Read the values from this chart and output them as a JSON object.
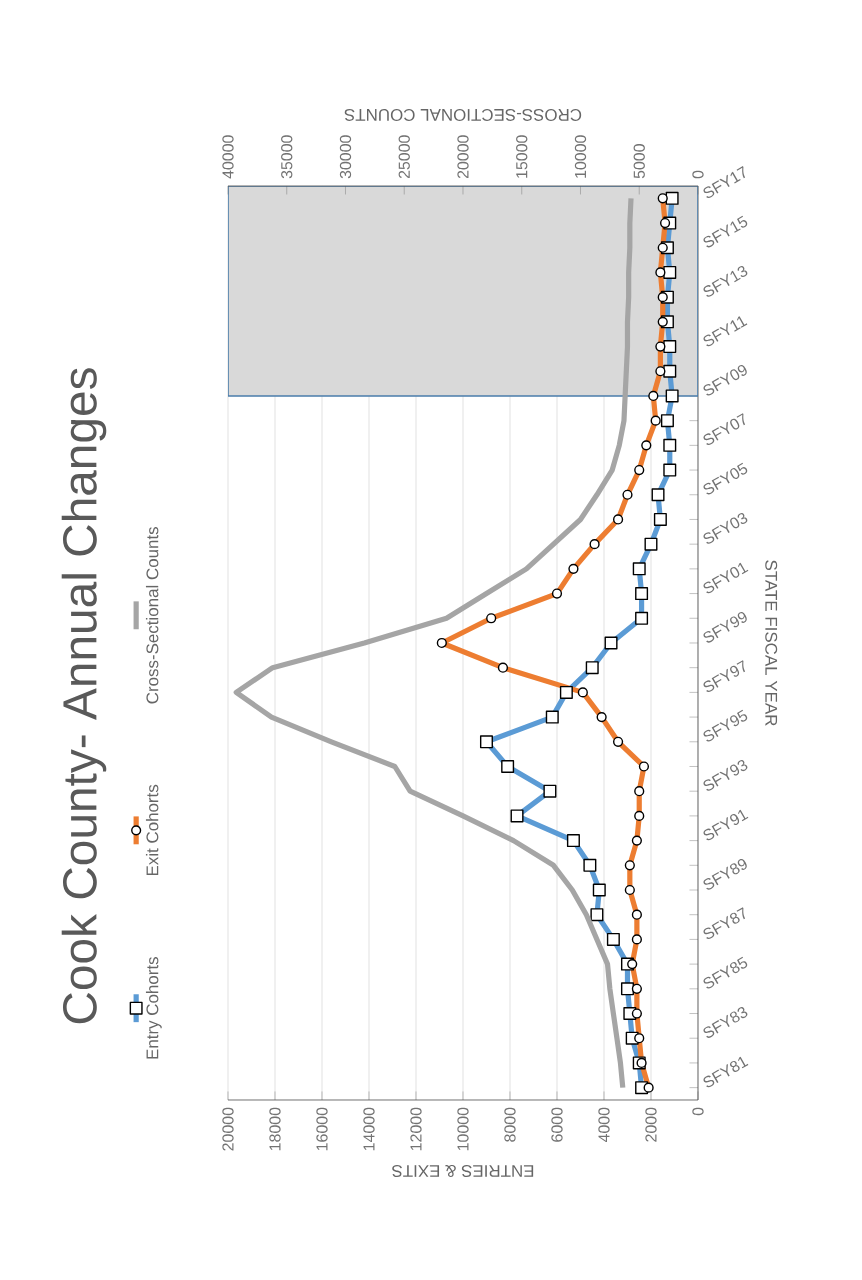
{
  "chart_data": {
    "type": "line",
    "orientation": "horizontal",
    "title": "Cook County- Annual Changes",
    "ylabel": "STATE FISCAL YEAR",
    "xlabel": "ENTRIES & EXITS",
    "x2label": "CROSS-SECTIONAL COUNTS",
    "categories": [
      "SFY17",
      null,
      "SFY15",
      null,
      "SFY13",
      null,
      "SFY11",
      null,
      "SFY09",
      null,
      "SFY07",
      null,
      "SFY05",
      null,
      "SFY03",
      null,
      "SFY01",
      null,
      "SFY99",
      null,
      "SFY97",
      null,
      "SFY95",
      null,
      "SFY93",
      null,
      "SFY91",
      null,
      "SFY89",
      null,
      "SFY87",
      null,
      "SFY85",
      null,
      "SFY83",
      null,
      "SFY81"
    ],
    "series": [
      {
        "name": "Entry Cohorts",
        "color": "#5b9bd5",
        "marker": "square",
        "values": [
          1100,
          1200,
          1300,
          1200,
          1300,
          1300,
          1200,
          1200,
          1100,
          1300,
          1200,
          1200,
          1700,
          1600,
          2000,
          2500,
          2400,
          2400,
          3700,
          4500,
          5600,
          6200,
          9000,
          8100,
          6300,
          7700,
          5300,
          4600,
          4200,
          4300,
          3600,
          3000,
          3000,
          2900,
          2800,
          2500,
          2400
        ]
      },
      {
        "name": "Exit Cohorts",
        "color": "#ed7d31",
        "marker": "circle",
        "values": [
          1500,
          1400,
          1500,
          1600,
          1500,
          1500,
          1600,
          1600,
          1900,
          1800,
          2200,
          2500,
          3000,
          3400,
          4400,
          5300,
          6000,
          8800,
          10900,
          8300,
          4900,
          4100,
          3400,
          2300,
          2500,
          2500,
          2600,
          2900,
          2900,
          2600,
          2600,
          2800,
          2600,
          2600,
          2500,
          2400,
          2100
        ]
      },
      {
        "name": "Cross-Sectional Counts",
        "color": "#a5a5a5",
        "axis": "x2",
        "values": [
          5700,
          5800,
          5800,
          5900,
          5900,
          6000,
          6000,
          6100,
          6200,
          6300,
          6700,
          7300,
          8600,
          10000,
          12300,
          14600,
          18000,
          21400,
          28400,
          36200,
          39300,
          36300,
          31200,
          25800,
          24500,
          20000,
          15700,
          12300,
          10700,
          9500,
          8600,
          7700,
          7500,
          7200,
          6900,
          6600,
          6400
        ]
      }
    ],
    "xlim": [
      20000,
      0
    ],
    "xticks": [
      0,
      2000,
      4000,
      6000,
      8000,
      10000,
      12000,
      14000,
      16000,
      18000,
      20000
    ],
    "x2lim": [
      40000,
      0
    ],
    "x2ticks": [
      0,
      5000,
      10000,
      15000,
      20000,
      25000,
      30000,
      35000,
      40000
    ],
    "bands": [
      {
        "axis": "y",
        "from": "SFY09",
        "to": "SFY17",
        "color": "#d9d9d9"
      }
    ],
    "grid": "x",
    "legend": "left"
  }
}
